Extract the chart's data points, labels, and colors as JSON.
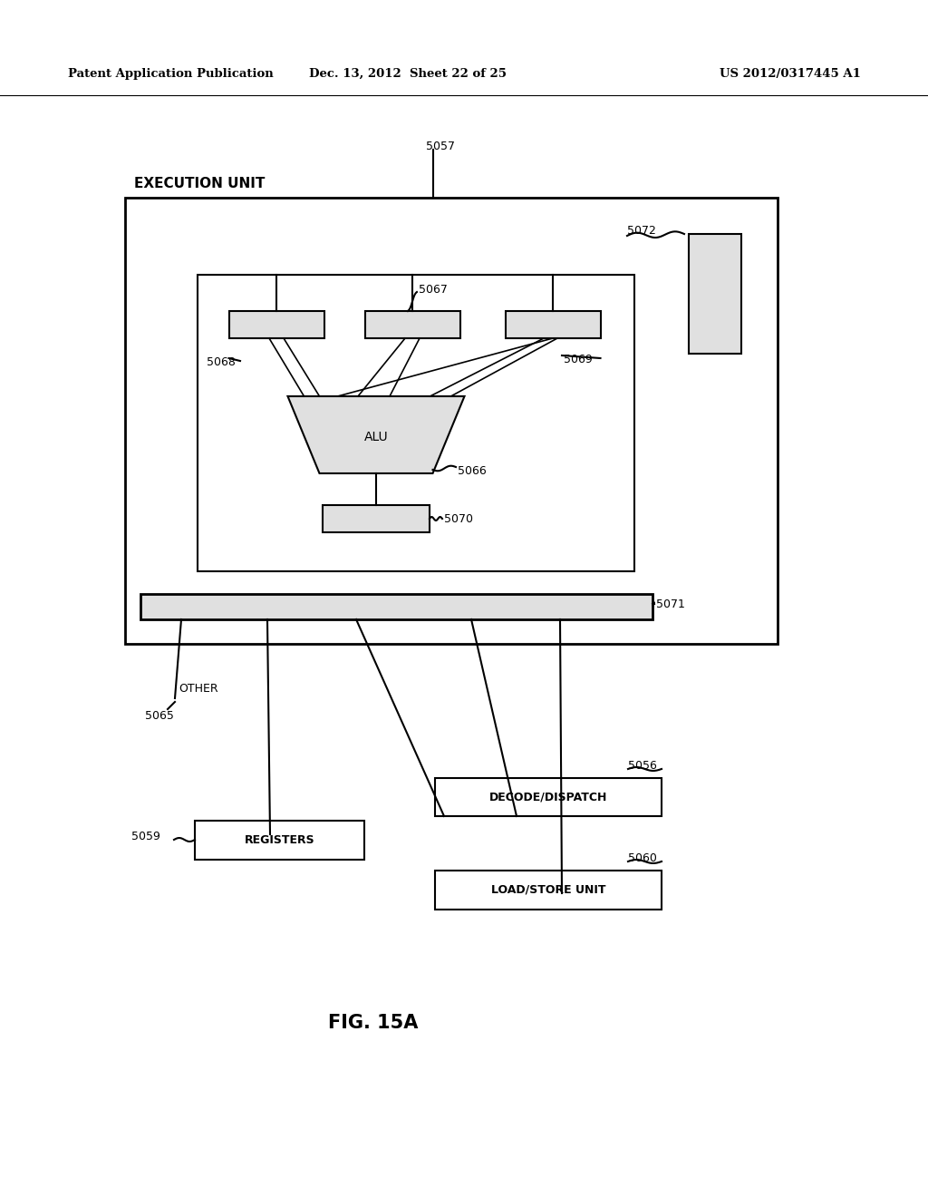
{
  "title_left": "Patent Application Publication",
  "title_mid": "Dec. 13, 2012  Sheet 22 of 25",
  "title_right": "US 2012/0317445 A1",
  "fig_label": "FIG. 15A",
  "label_5057": "5057",
  "label_5072": "5072",
  "label_5067": "5067",
  "label_5068": "5068",
  "label_5069": "5069",
  "label_5066": "5066",
  "label_5070": "5070",
  "label_5071": "5071",
  "label_5065": "5065",
  "label_5059": "5059",
  "label_5056": "5056",
  "label_5060": "5060",
  "text_exec": "EXECUTION UNIT",
  "text_alu": "ALU",
  "text_other": "OTHER",
  "text_registers": "REGISTERS",
  "text_decode": "DECODE/DISPATCH",
  "text_loadstore": "LOAD/STORE UNIT",
  "bg_color": "#ffffff",
  "line_color": "#000000",
  "box_fill": "#ffffff",
  "box_edge": "#000000",
  "gray_fill": "#d8d8d8",
  "light_gray": "#e0e0e0"
}
